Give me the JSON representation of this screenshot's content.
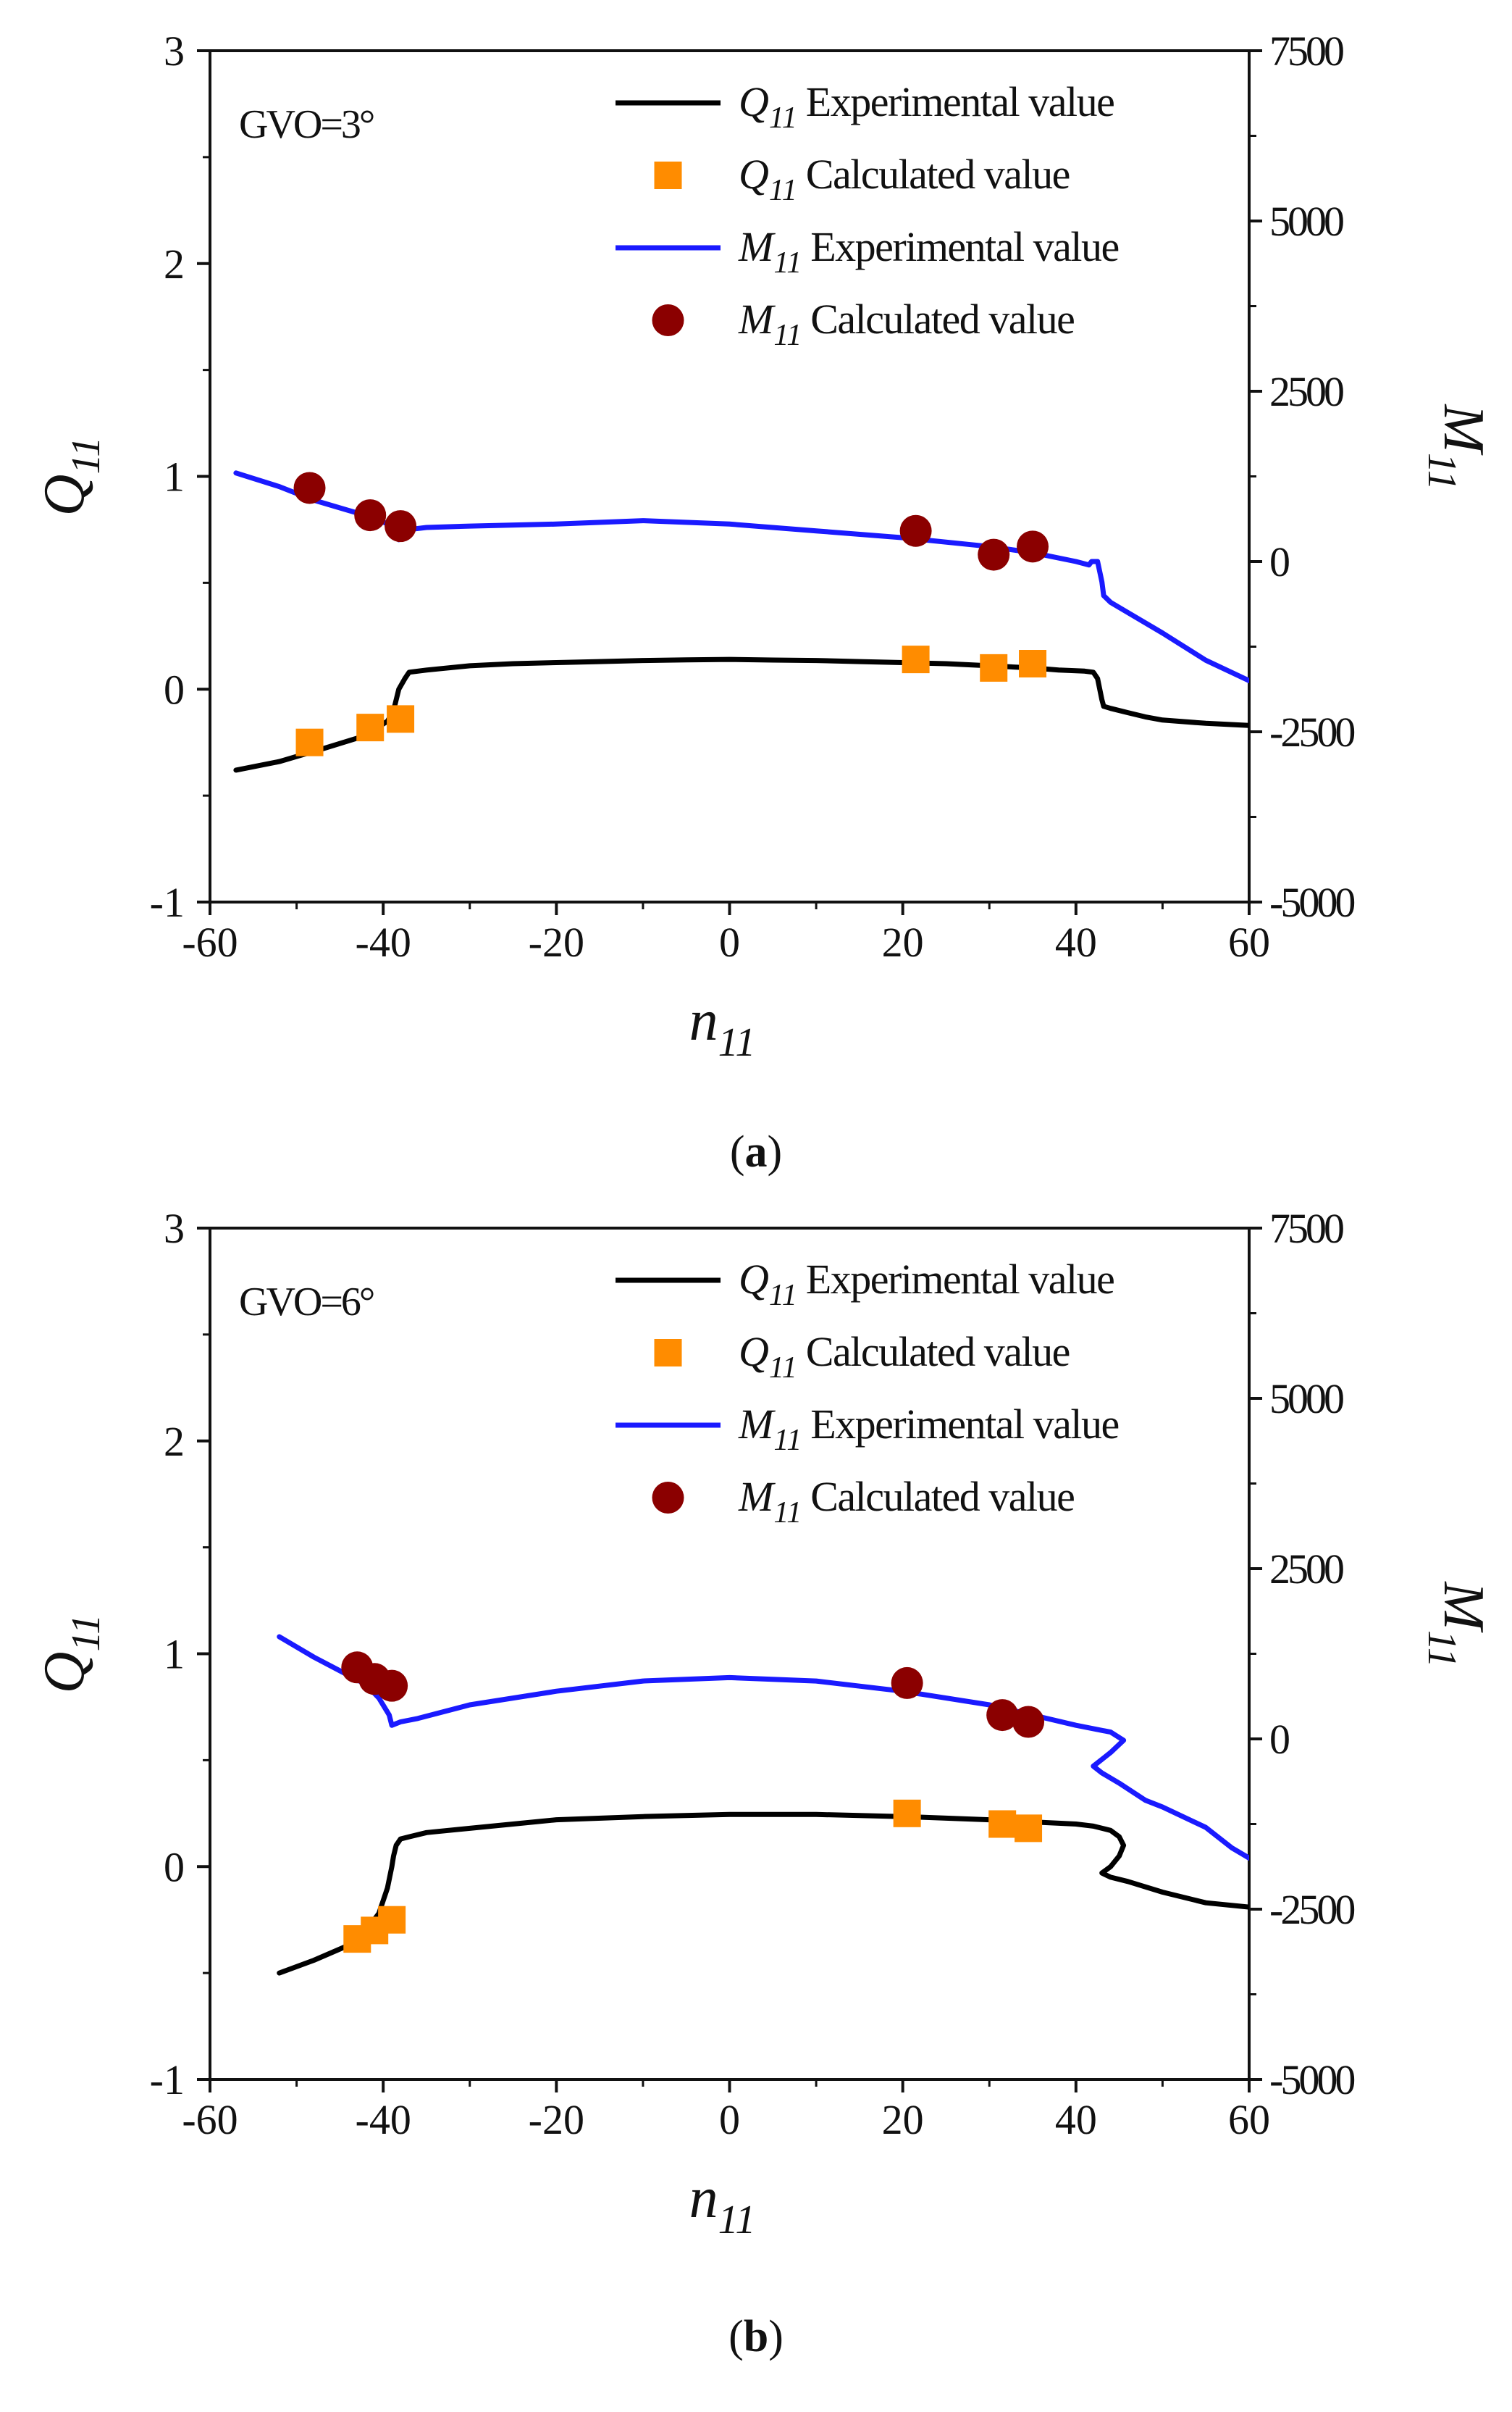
{
  "chart_data": [
    {
      "panel": "a",
      "panel_label": "a",
      "annotation": "GVO=3°",
      "type": "line",
      "x_axis": {
        "label_main": "n",
        "label_sub": "11",
        "lim": [
          -60,
          60
        ],
        "ticks": [
          -60,
          -40,
          -20,
          0,
          20,
          40,
          60
        ],
        "tick_labels": [
          "-60",
          "-40",
          "-20",
          "0",
          "20",
          "40",
          "60"
        ]
      },
      "y_left": {
        "label_main": "Q",
        "label_sub": "11",
        "lim": [
          -1,
          3
        ],
        "ticks": [
          -1,
          0,
          1,
          2,
          3
        ],
        "tick_labels": [
          "-1",
          "0",
          "1",
          "2",
          "3"
        ]
      },
      "y_right": {
        "label_main": "M",
        "label_sub": "11",
        "lim": [
          -5000,
          7500
        ],
        "ticks": [
          -5000,
          -2500,
          0,
          2500,
          5000,
          7500
        ],
        "tick_labels": [
          "-5000",
          "-2500",
          "0",
          "2500",
          "5000",
          "7500"
        ]
      },
      "series": [
        {
          "name": "Experimental value",
          "symbol": "Q",
          "symbol_sub": "11",
          "kind": "line",
          "axis": "left",
          "color": "#000000",
          "x": [
            -57,
            -52,
            -47,
            -43,
            -41,
            -39.5,
            -38.8,
            -38.5,
            -38.2,
            -37.5,
            -37,
            -35,
            -30,
            -25,
            -20,
            -15,
            -10,
            -5,
            0,
            5,
            10,
            15,
            20,
            25,
            30,
            35,
            38,
            41,
            42,
            42.5,
            43,
            43.2,
            44,
            46,
            48,
            50,
            55,
            60
          ],
          "y": [
            -0.38,
            -0.34,
            -0.28,
            -0.23,
            -0.19,
            -0.15,
            -0.1,
            -0.05,
            0.0,
            0.05,
            0.08,
            0.09,
            0.11,
            0.12,
            0.125,
            0.13,
            0.135,
            0.138,
            0.14,
            0.137,
            0.135,
            0.13,
            0.125,
            0.12,
            0.11,
            0.1,
            0.09,
            0.085,
            0.08,
            0.05,
            -0.05,
            -0.08,
            -0.09,
            -0.11,
            -0.13,
            -0.145,
            -0.16,
            -0.17
          ]
        },
        {
          "name": "Calculated value",
          "symbol": "Q",
          "symbol_sub": "11",
          "kind": "scatter",
          "marker": "square",
          "axis": "left",
          "color": "#ff8c00",
          "x": [
            -48.5,
            -41.5,
            -38
          ],
          "y": [
            -0.25,
            -0.18,
            -0.14
          ],
          "x2": [
            21.5,
            30.5,
            35
          ],
          "y2": [
            0.14,
            0.1,
            0.12
          ]
        },
        {
          "name": "Experimental value",
          "symbol": "M",
          "symbol_sub": "11",
          "kind": "line",
          "axis": "right",
          "color": "#1a1aff",
          "x": [
            -57,
            -52,
            -48,
            -44,
            -41,
            -39,
            -38.2,
            -37.8,
            -37,
            -35,
            -30,
            -20,
            -10,
            0,
            10,
            20,
            30,
            35,
            40,
            41.5,
            41.8,
            42.5,
            43,
            43.2,
            44,
            46,
            50,
            55,
            60
          ],
          "y": [
            1300,
            1100,
            900,
            750,
            640,
            520,
            320,
            380,
            470,
            500,
            520,
            550,
            600,
            550,
            450,
            350,
            220,
            130,
            0,
            -50,
            0,
            0,
            -300,
            -500,
            -600,
            -750,
            -1050,
            -1450,
            -1750
          ]
        },
        {
          "name": "Calculated value",
          "symbol": "M",
          "symbol_sub": "11",
          "kind": "scatter",
          "marker": "circle",
          "axis": "right",
          "color": "#8b0000",
          "x": [
            -48.5,
            -41.5,
            -38,
            21.5,
            30.5,
            35
          ],
          "y": [
            1080,
            680,
            520,
            450,
            100,
            220
          ]
        }
      ]
    },
    {
      "panel": "b",
      "panel_label": "b",
      "annotation": "GVO=6°",
      "type": "line",
      "x_axis": {
        "label_main": "n",
        "label_sub": "11",
        "lim": [
          -60,
          60
        ],
        "ticks": [
          -60,
          -40,
          -20,
          0,
          20,
          40,
          60
        ],
        "tick_labels": [
          "-60",
          "-40",
          "-20",
          "0",
          "20",
          "40",
          "60"
        ]
      },
      "y_left": {
        "label_main": "Q",
        "label_sub": "11",
        "lim": [
          -1,
          3
        ],
        "ticks": [
          -1,
          0,
          1,
          2,
          3
        ],
        "tick_labels": [
          "-1",
          "0",
          "1",
          "2",
          "3"
        ]
      },
      "y_right": {
        "label_main": "M",
        "label_sub": "11",
        "lim": [
          -5000,
          7500
        ],
        "ticks": [
          -5000,
          -2500,
          0,
          2500,
          5000,
          7500
        ],
        "tick_labels": [
          "-5000",
          "-2500",
          "0",
          "2500",
          "5000",
          "7500"
        ]
      },
      "series": [
        {
          "name": "Experimental value",
          "symbol": "Q",
          "symbol_sub": "11",
          "kind": "line",
          "axis": "left",
          "color": "#000000",
          "x": [
            -52,
            -48,
            -44,
            -42,
            -40.5,
            -39.5,
            -39,
            -38.8,
            -38.5,
            -38,
            -37,
            -35,
            -30,
            -25,
            -20,
            -10,
            0,
            10,
            20,
            30,
            35,
            40,
            42,
            44,
            45,
            45.5,
            45,
            44,
            43,
            44,
            46,
            50,
            55,
            60
          ],
          "y": [
            -0.5,
            -0.44,
            -0.37,
            -0.3,
            -0.22,
            -0.1,
            0.0,
            0.05,
            0.1,
            0.13,
            0.14,
            0.16,
            0.18,
            0.2,
            0.22,
            0.235,
            0.245,
            0.245,
            0.235,
            0.22,
            0.21,
            0.2,
            0.19,
            0.17,
            0.14,
            0.1,
            0.05,
            0.0,
            -0.03,
            -0.05,
            -0.07,
            -0.12,
            -0.17,
            -0.19
          ]
        },
        {
          "name": "Calculated value",
          "symbol": "Q",
          "symbol_sub": "11",
          "kind": "scatter",
          "marker": "square",
          "axis": "left",
          "color": "#ff8c00",
          "x": [
            -43,
            -41,
            -39,
            20.5,
            31.5,
            34.5
          ],
          "y": [
            -0.34,
            -0.3,
            -0.25,
            0.25,
            0.2,
            0.18
          ]
        },
        {
          "name": "Experimental value",
          "symbol": "M",
          "symbol_sub": "11",
          "kind": "line",
          "axis": "right",
          "color": "#1a1aff",
          "x": [
            -52,
            -48,
            -45,
            -42,
            -40.5,
            -39.3,
            -39,
            -38,
            -36,
            -30,
            -20,
            -10,
            0,
            10,
            20,
            30,
            35,
            40,
            44,
            45.5,
            44,
            42,
            43,
            45,
            48,
            50,
            55,
            58,
            60
          ],
          "y": [
            1500,
            1200,
            1000,
            800,
            600,
            350,
            200,
            250,
            300,
            500,
            700,
            850,
            900,
            850,
            700,
            500,
            350,
            200,
            100,
            -20,
            -200,
            -400,
            -500,
            -650,
            -900,
            -1000,
            -1300,
            -1600,
            -1750
          ]
        },
        {
          "name": "Calculated value",
          "symbol": "M",
          "symbol_sub": "11",
          "kind": "scatter",
          "marker": "circle",
          "axis": "right",
          "color": "#8b0000",
          "x": [
            -43,
            -41,
            -39,
            20.5,
            31.5,
            34.5
          ],
          "y": [
            1050,
            880,
            780,
            820,
            350,
            250
          ]
        }
      ]
    }
  ]
}
